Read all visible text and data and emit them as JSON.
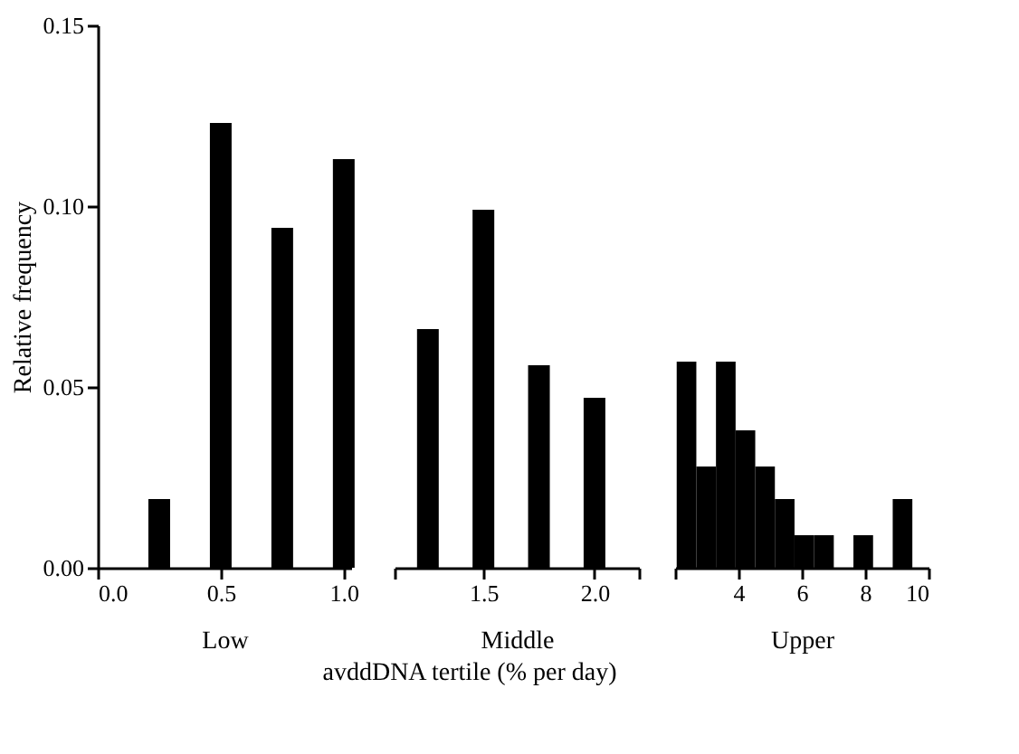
{
  "chart_data": [
    {
      "type": "bar",
      "xlabel": "Low",
      "ylabel": "Relative frequency",
      "x": [
        0.25,
        0.5,
        0.75,
        1.0
      ],
      "values": [
        0.019,
        0.123,
        0.094,
        0.113
      ],
      "color": "#000000",
      "xlim": [
        0,
        1.03
      ],
      "xticks": [
        {
          "value": 0,
          "label": "0.0"
        },
        0.5,
        {
          "value": 1,
          "label": "1.0"
        }
      ],
      "ylim": [
        0,
        0.15
      ],
      "yticks": [
        {
          "value": 0,
          "label": "0.00"
        },
        0.05,
        {
          "value": 0.1,
          "label": "0.10"
        },
        0.15
      ],
      "grid": false
    },
    {
      "type": "bar",
      "xlabel": "Middle",
      "x": [
        1.25,
        1.5,
        1.75,
        2.0
      ],
      "values": [
        0.066,
        0.099,
        0.056,
        0.047
      ],
      "color": "#000000",
      "xlim": [
        1.1,
        2.2
      ],
      "xticks": [
        {
          "value": 1.1,
          "label": null
        },
        1.5,
        {
          "value": 2,
          "label": "2.0"
        },
        {
          "value": 2.2,
          "label": null
        }
      ],
      "ylim": [
        0,
        0.15
      ],
      "tick_labels": "x",
      "grid": false,
      "annotations": [
        "avddDNA tertile (% per day)"
      ]
    },
    {
      "type": "histogram",
      "xlabel": "Upper",
      "bins": [
        2.05,
        2.67,
        3.29,
        3.91,
        4.53,
        5.15,
        5.77,
        6.39,
        7.01,
        7.63,
        8.25,
        8.87,
        9.49
      ],
      "values": [
        0.057,
        0.028,
        0.057,
        0.038,
        0.028,
        0.019,
        0.009,
        0.009,
        0,
        0.009,
        0,
        0.019
      ],
      "color": "#000000",
      "xlim": [
        2,
        10
      ],
      "xticks": [
        {
          "value": 2,
          "label": null
        },
        4,
        6,
        8,
        10
      ],
      "ylim": [
        0,
        0.15
      ],
      "tick_labels": "x",
      "grid": false
    }
  ]
}
